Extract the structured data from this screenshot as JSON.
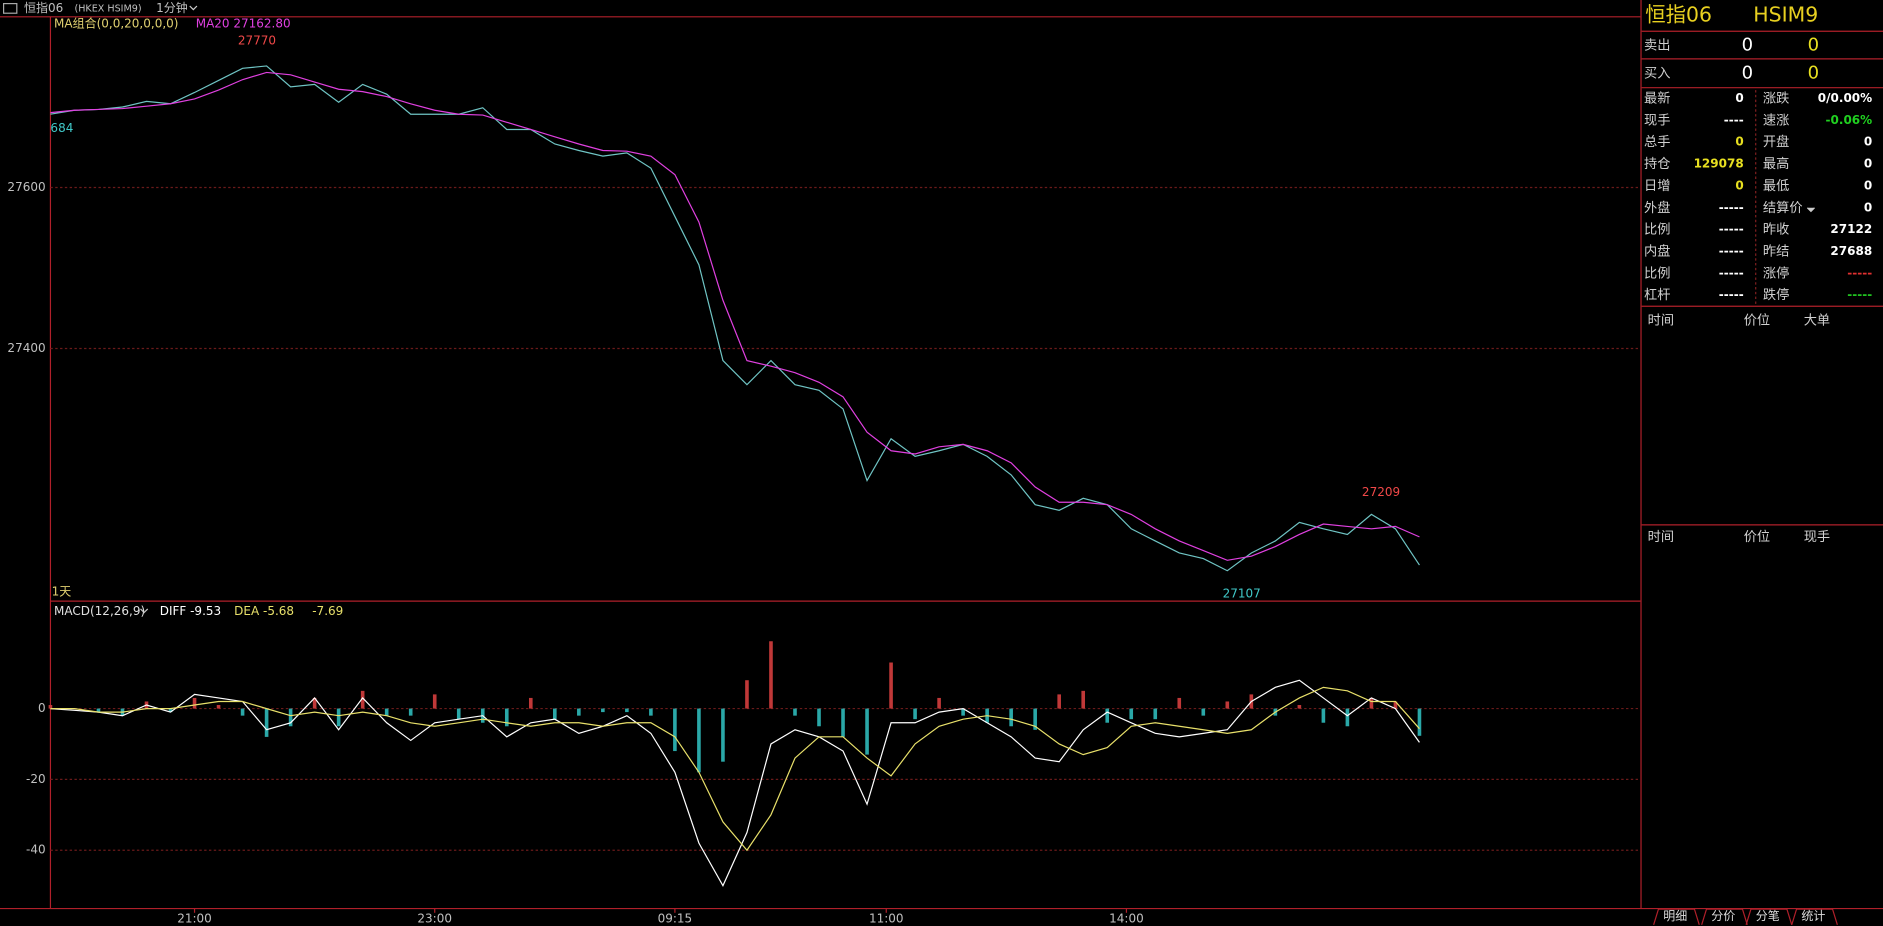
{
  "header": {
    "title": "恒指06",
    "code": "(HKEX HSIM9)",
    "period": "1分钟"
  },
  "chart_data": [
    {
      "type": "line",
      "indicator": "MA组合(0,0,20,0,0,0)",
      "edge_label": "684",
      "period_label": "1天",
      "x": [
        0,
        5,
        10,
        15,
        20,
        25,
        30,
        35,
        40,
        45,
        50,
        55,
        60,
        65,
        70,
        75,
        80,
        85,
        90,
        95,
        100,
        105,
        110,
        115,
        120,
        125,
        130,
        135,
        140,
        145,
        150,
        155,
        160,
        165,
        170,
        175,
        180,
        185,
        190,
        195,
        200,
        205,
        210,
        215,
        220,
        225,
        230,
        235,
        240,
        245,
        250,
        255,
        260,
        265,
        270,
        275,
        280,
        285
      ],
      "xlim": [
        0,
        331
      ],
      "ylim": [
        27087,
        27812
      ],
      "yticks": [
        27400,
        27600
      ],
      "grid": true,
      "series": [
        {
          "color": "#6fc4c4",
          "values": [
            27691,
            27696,
            27697,
            27700,
            27707,
            27704,
            27718,
            27733,
            27748,
            27751,
            27725,
            27728,
            27706,
            27728,
            27716,
            27691,
            27691,
            27691,
            27699,
            27672,
            27672,
            27654,
            27646,
            27639,
            27643,
            27624,
            27564,
            27504,
            27385,
            27355,
            27385,
            27355,
            27348,
            27325,
            27236,
            27288,
            27266,
            27273,
            27281,
            27266,
            27243,
            27206,
            27199,
            27214,
            27206,
            27176,
            27161,
            27146,
            27139,
            27124,
            27146,
            27161,
            27184,
            27176,
            27169,
            27194,
            27176,
            27131
          ]
        },
        {
          "name": "MA20 27162.80",
          "color": "#e040e0",
          "values": [
            27693,
            27696,
            27697,
            27698,
            27701,
            27704,
            27710,
            27721,
            27734,
            27743,
            27740,
            27731,
            27722,
            27719,
            27713,
            27704,
            27696,
            27691,
            27690,
            27681,
            27672,
            27663,
            27654,
            27646,
            27645,
            27639,
            27616,
            27557,
            27460,
            27385,
            27378,
            27370,
            27358,
            27340,
            27296,
            27273,
            27269,
            27278,
            27281,
            27273,
            27258,
            27228,
            27209,
            27209,
            27206,
            27194,
            27176,
            27161,
            27149,
            27137,
            27142,
            27154,
            27169,
            27182,
            27179,
            27176,
            27179,
            27166
          ]
        }
      ],
      "annotations": [
        {
          "x": 43,
          "value": 27770
        },
        {
          "x": 248,
          "value": 27107
        },
        {
          "x": 277,
          "value": 27209
        }
      ]
    },
    {
      "type": "macd",
      "title": "MACD(12,26,9)",
      "labels": [
        "DIFF -9.53",
        "DEA -5.68",
        "-7.69"
      ],
      "x": [
        0,
        5,
        10,
        15,
        20,
        25,
        30,
        35,
        40,
        45,
        50,
        55,
        60,
        65,
        70,
        75,
        80,
        85,
        90,
        95,
        100,
        105,
        110,
        115,
        120,
        125,
        130,
        135,
        140,
        145,
        150,
        155,
        160,
        165,
        170,
        175,
        180,
        185,
        190,
        195,
        200,
        205,
        210,
        215,
        220,
        225,
        230,
        235,
        240,
        245,
        250,
        255,
        260,
        265,
        270,
        275,
        280,
        285
      ],
      "xlim": [
        0,
        331
      ],
      "ylim": [
        -56.3,
        30.5
      ],
      "yticks": [
        -40,
        -20,
        0
      ],
      "grid": true,
      "xticks": [
        {
          "value": 30,
          "label": "21:00"
        },
        {
          "value": 80,
          "label": "23:00"
        },
        {
          "value": 130,
          "label": "09:15"
        },
        {
          "value": 174,
          "label": "11:00"
        },
        {
          "value": 224,
          "label": "14:00"
        }
      ],
      "histogram": {
        "up_color": "#c03838",
        "down_color": "#2aa8a8",
        "values": [
          1,
          0,
          -1,
          -2,
          2,
          -1,
          3,
          1,
          -2,
          -8,
          -5,
          3,
          -5,
          5,
          -2,
          -2,
          4,
          -3,
          -4,
          -5,
          3,
          -3,
          -2,
          -1,
          -1,
          -2,
          -12,
          -18,
          -15,
          8,
          19,
          -2,
          -5,
          -8,
          -13,
          13,
          -3,
          3,
          -2,
          -4,
          -5,
          -6,
          4,
          5,
          -4,
          -3,
          -3,
          3,
          -2,
          2,
          4,
          -2,
          1,
          -4,
          -5,
          3,
          2,
          -7.69
        ]
      },
      "series": [
        {
          "color": "#ffffff",
          "values": [
            0,
            -0.5,
            -1,
            -2,
            1,
            -1,
            4,
            3,
            2,
            -6,
            -4,
            3,
            -6,
            3,
            -4,
            -9,
            -4,
            -3,
            -2,
            -8,
            -4,
            -3,
            -7,
            -5,
            -2,
            -7,
            -18,
            -38,
            -50,
            -35,
            -10,
            -6,
            -8,
            -12,
            -27,
            -4,
            -4,
            -1,
            0,
            -4,
            -8,
            -14,
            -15,
            -6,
            -1,
            -4,
            -7,
            -8,
            -7,
            -6,
            2,
            6,
            8,
            3,
            -2,
            3,
            0,
            -9.53
          ]
        },
        {
          "color": "#e8e06a",
          "values": [
            0,
            0,
            -1,
            -1,
            0,
            0,
            1,
            2,
            2,
            0,
            -2,
            -1,
            -2,
            -1,
            -2,
            -4,
            -5,
            -4,
            -3,
            -4,
            -5,
            -4,
            -4,
            -5,
            -4,
            -4,
            -8,
            -18,
            -32,
            -40,
            -30,
            -14,
            -8,
            -8,
            -14,
            -19,
            -10,
            -5,
            -3,
            -2,
            -3,
            -5,
            -10,
            -13,
            -11,
            -5,
            -4,
            -5,
            -6,
            -7,
            -6,
            -1,
            3,
            6,
            5,
            2,
            2,
            -5.68
          ]
        }
      ]
    }
  ],
  "quote": {
    "name": "恒指06",
    "code": "HSIM9",
    "sell": {
      "label": "卖出",
      "price": "0",
      "volume": "0"
    },
    "buy": {
      "label": "买入",
      "price": "0",
      "volume": "0"
    },
    "rows": [
      [
        {
          "label": "最新",
          "value": "0"
        },
        {
          "label": "涨跌",
          "value": "0/0.00%"
        }
      ],
      [
        {
          "label": "现手",
          "value": "----"
        },
        {
          "label": "速涨",
          "value": "-0.06%",
          "color": "#20d020"
        }
      ],
      [
        {
          "label": "总手",
          "value": "0",
          "color": "#e8e020"
        },
        {
          "label": "开盘",
          "value": "0"
        }
      ],
      [
        {
          "label": "持仓",
          "value": "129078",
          "color": "#e8e020"
        },
        {
          "label": "最高",
          "value": "0"
        }
      ],
      [
        {
          "label": "日增",
          "value": "0",
          "color": "#e8e020"
        },
        {
          "label": "最低",
          "value": "0"
        }
      ],
      [
        {
          "label": "外盘",
          "value": "-----"
        },
        {
          "label": "结算价",
          "value": "0"
        }
      ],
      [
        {
          "label": "比例",
          "value": "-----"
        },
        {
          "label": "昨收",
          "value": "27122"
        }
      ],
      [
        {
          "label": "内盘",
          "value": "-----"
        },
        {
          "label": "昨结",
          "value": "27688"
        }
      ],
      [
        {
          "label": "比例",
          "value": "-----"
        },
        {
          "label": "涨停",
          "value": "-----",
          "color": "#e03030"
        }
      ],
      [
        {
          "label": "杠杆",
          "value": "-----"
        },
        {
          "label": "跌停",
          "value": "-----",
          "color": "#20c020"
        }
      ]
    ]
  },
  "ticks_panel": {
    "headers": [
      "时间",
      "价位",
      "大单"
    ]
  },
  "trades_panel": {
    "headers": [
      "时间",
      "价位",
      "现手"
    ]
  },
  "tabs": [
    "明细",
    "分价",
    "分笔",
    "统计"
  ]
}
